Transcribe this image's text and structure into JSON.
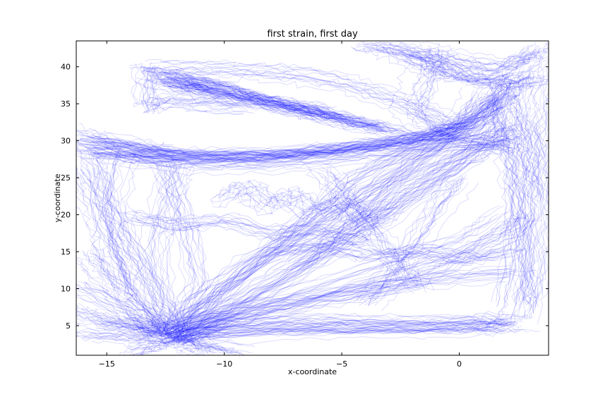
{
  "chart_data": {
    "type": "line",
    "title": "first strain, first day",
    "xlabel": "x-coordinate",
    "ylabel": "y-coordinate",
    "xlim": [
      -16.3,
      3.8
    ],
    "ylim": [
      1.0,
      43.5
    ],
    "x_ticks": [
      -15,
      -10,
      -5,
      0
    ],
    "x_tick_labels": [
      "−15",
      "−10",
      "−5",
      "0"
    ],
    "y_ticks": [
      5,
      10,
      15,
      20,
      25,
      30,
      35,
      40
    ],
    "y_tick_labels": [
      "5",
      "10",
      "15",
      "20",
      "25",
      "30",
      "35",
      "40"
    ],
    "grid": false,
    "legend": "none",
    "line_color": "#0000ff",
    "line_alpha": 0.15,
    "series": [
      {
        "x": [
          -12.5,
          -11.0,
          -8.0,
          -5.0,
          -2.0,
          0.5,
          2.0
        ],
        "y": [
          3.5,
          4.5,
          5.0,
          5.0,
          5.1,
          5.3,
          5.0
        ]
      },
      {
        "x": [
          -12.0,
          -10.0,
          -7.0,
          -4.0,
          -1.0,
          1.0,
          2.5
        ],
        "y": [
          4.0,
          5.2,
          5.5,
          5.4,
          5.2,
          5.5,
          5.2
        ]
      },
      {
        "x": [
          -12.3,
          -10.5,
          -6.0,
          -2.0,
          1.0,
          2.2
        ],
        "y": [
          3.0,
          4.0,
          4.6,
          4.8,
          5.0,
          6.0
        ]
      },
      {
        "x": [
          -15.0,
          -13.5,
          -12.5
        ],
        "y": [
          5.5,
          4.5,
          3.5
        ]
      },
      {
        "x": [
          -16.0,
          -14.5,
          -12.8
        ],
        "y": [
          4.0,
          3.8,
          3.5
        ]
      },
      {
        "x": [
          -16.0,
          -14.0,
          -12.5
        ],
        "y": [
          10.5,
          7.0,
          4.0
        ]
      },
      {
        "x": [
          -12.2,
          -11.5,
          -11.0
        ],
        "y": [
          3.5,
          2.0,
          1.2
        ]
      },
      {
        "x": [
          -12.0,
          -9.0,
          -6.0,
          -3.0,
          0.0,
          1.5,
          2.0
        ],
        "y": [
          4.0,
          9.0,
          14.0,
          20.0,
          27.0,
          32.0,
          35.0
        ]
      },
      {
        "x": [
          -12.5,
          -10.0,
          -7.0,
          -4.0,
          -1.0,
          1.0,
          2.0
        ],
        "y": [
          4.5,
          10.0,
          17.0,
          23.0,
          29.0,
          33.0,
          38.0
        ]
      },
      {
        "x": [
          -12.0,
          -8.0,
          -4.0,
          0.0,
          2.0
        ],
        "y": [
          3.5,
          8.0,
          12.0,
          16.0,
          20.0
        ]
      },
      {
        "x": [
          -12.3,
          -9.0,
          -5.0,
          -1.0,
          2.5
        ],
        "y": [
          4.0,
          7.0,
          9.0,
          11.0,
          12.0
        ]
      },
      {
        "x": [
          -12.5,
          -11.0,
          -9.0,
          -6.0,
          -3.0,
          0.0,
          2.0
        ],
        "y": [
          4.0,
          8.0,
          13.0,
          18.0,
          24.0,
          28.0,
          30.0
        ]
      },
      {
        "x": [
          -11.8,
          -9.5,
          -7.0,
          -4.5,
          -2.0,
          0.5
        ],
        "y": [
          4.2,
          11.0,
          18.0,
          25.0,
          29.0,
          31.0
        ]
      },
      {
        "x": [
          -12.5,
          -12.8,
          -13.0,
          -12.5,
          -12.0
        ],
        "y": [
          3.5,
          8.0,
          15.0,
          22.0,
          27.0
        ]
      },
      {
        "x": [
          -12.0,
          -13.0,
          -14.5,
          -15.5,
          -16.0
        ],
        "y": [
          4.0,
          10.0,
          18.0,
          25.0,
          29.0
        ]
      },
      {
        "x": [
          -12.5,
          -14.0,
          -14.8,
          -15.0,
          -14.5
        ],
        "y": [
          4.0,
          9.0,
          16.0,
          22.0,
          28.5
        ]
      },
      {
        "x": [
          -12.0,
          -11.0,
          -11.5,
          -12.5
        ],
        "y": [
          4.0,
          11.0,
          19.0,
          27.0
        ]
      },
      {
        "x": [
          -16.0,
          -14.0,
          -11.0,
          -8.0,
          -5.0,
          -3.0,
          -1.0,
          1.0
        ],
        "y": [
          29.5,
          28.5,
          28.0,
          28.2,
          29.0,
          30.0,
          31.0,
          33.0
        ]
      },
      {
        "x": [
          -16.0,
          -13.0,
          -10.0,
          -7.0,
          -4.0,
          -2.0,
          0.0,
          2.0
        ],
        "y": [
          30.0,
          28.5,
          27.8,
          28.0,
          28.8,
          30.0,
          32.0,
          36.0
        ]
      },
      {
        "x": [
          -15.5,
          -12.0,
          -9.0,
          -6.0,
          -3.5,
          -1.5,
          0.5,
          2.0
        ],
        "y": [
          29.0,
          28.2,
          28.0,
          28.5,
          29.5,
          30.5,
          32.5,
          37.0
        ]
      },
      {
        "x": [
          -16.0,
          -13.5,
          -11.0,
          -8.0,
          -5.0,
          -2.5,
          -0.5,
          1.5,
          2.5
        ],
        "y": [
          28.5,
          27.5,
          27.5,
          28.0,
          29.2,
          30.0,
          31.5,
          35.0,
          39.0
        ]
      },
      {
        "x": [
          -14.0,
          -11.0,
          -8.0,
          -5.0,
          -2.0,
          1.0,
          2.5
        ],
        "y": [
          28.0,
          27.0,
          27.0,
          28.0,
          29.0,
          30.0,
          31.0
        ]
      },
      {
        "x": [
          -16.0,
          -14.5,
          -13.0,
          -12.0
        ],
        "y": [
          31.0,
          30.0,
          29.0,
          28.5
        ]
      },
      {
        "x": [
          -12.5,
          -11.0,
          -9.0,
          -7.0,
          -5.0,
          -3.0
        ],
        "y": [
          38.5,
          37.5,
          36.0,
          34.5,
          33.0,
          31.5
        ]
      },
      {
        "x": [
          -13.0,
          -11.5,
          -10.0,
          -8.0,
          -6.0,
          -4.0,
          -2.0
        ],
        "y": [
          38.0,
          37.0,
          36.0,
          35.0,
          33.5,
          32.0,
          31.0
        ]
      },
      {
        "x": [
          -12.0,
          -10.5,
          -9.0,
          -7.5,
          -6.0,
          -4.5
        ],
        "y": [
          39.0,
          38.0,
          36.5,
          35.0,
          34.0,
          33.0
        ]
      },
      {
        "x": [
          -12.8,
          -11.0,
          -9.5,
          -8.0,
          -6.5,
          -5.0,
          -3.5
        ],
        "y": [
          37.5,
          36.5,
          35.5,
          34.5,
          33.5,
          32.5,
          31.5
        ]
      },
      {
        "x": [
          -11.5,
          -10.0,
          -8.5,
          -7.0,
          -5.5
        ],
        "y": [
          38.0,
          37.5,
          36.0,
          35.0,
          34.5
        ]
      },
      {
        "x": [
          -13.2,
          -12.0,
          -10.5
        ],
        "y": [
          39.5,
          38.5,
          37.0
        ]
      },
      {
        "x": [
          -13.0,
          -11.0,
          -9.0,
          -7.0,
          -5.0,
          -3.0,
          -1.5,
          0.0
        ],
        "y": [
          39.8,
          39.6,
          39.5,
          39.0,
          38.0,
          36.0,
          34.0,
          32.0
        ]
      },
      {
        "x": [
          -13.2,
          -13.2,
          -12.5,
          -11.0,
          -9.0
        ],
        "y": [
          40.0,
          34.5,
          35.5,
          35.0,
          34.5
        ]
      },
      {
        "x": [
          -3.0,
          -2.0,
          -1.0,
          0.0,
          1.5,
          2.5,
          3.5
        ],
        "y": [
          42.5,
          41.0,
          39.5,
          38.5,
          38.0,
          39.0,
          42.0
        ]
      },
      {
        "x": [
          -4.0,
          -2.5,
          -1.0,
          0.5,
          2.0,
          3.0,
          3.5
        ],
        "y": [
          43.0,
          42.5,
          41.5,
          40.5,
          40.0,
          41.0,
          42.5
        ]
      },
      {
        "x": [
          -2.0,
          -1.0,
          0.0,
          1.0,
          2.0,
          3.5
        ],
        "y": [
          42.0,
          40.5,
          39.0,
          38.0,
          37.5,
          38.0
        ]
      },
      {
        "x": [
          2.0,
          2.5,
          2.8,
          3.0,
          3.5
        ],
        "y": [
          38.0,
          34.0,
          30.0,
          26.0,
          22.0
        ]
      },
      {
        "x": [
          1.5,
          1.8,
          2.2,
          2.5,
          2.8,
          3.0
        ],
        "y": [
          36.0,
          31.0,
          26.0,
          20.0,
          14.0,
          8.0
        ]
      },
      {
        "x": [
          2.5,
          3.0,
          3.2,
          3.0,
          2.5
        ],
        "y": [
          33.0,
          27.0,
          20.0,
          12.0,
          6.0
        ]
      },
      {
        "x": [
          3.5,
          3.2,
          2.8,
          2.5,
          2.0
        ],
        "y": [
          40.0,
          33.0,
          25.0,
          16.0,
          8.0
        ]
      },
      {
        "x": [
          2.0,
          1.0,
          -1.0,
          -3.0,
          -5.0,
          -7.0
        ],
        "y": [
          32.0,
          29.0,
          25.0,
          21.0,
          17.0,
          13.0
        ]
      },
      {
        "x": [
          1.0,
          0.0,
          -2.0,
          -4.0,
          -6.0,
          -9.0,
          -12.0
        ],
        "y": [
          36.0,
          31.0,
          26.0,
          20.0,
          14.0,
          8.0,
          4.0
        ]
      },
      {
        "x": [
          3.0,
          2.0,
          0.0,
          -2.0,
          -5.0,
          -8.0,
          -11.0
        ],
        "y": [
          20.0,
          17.0,
          14.0,
          11.0,
          9.0,
          7.0,
          5.0
        ]
      },
      {
        "x": [
          -10.0,
          -9.0,
          -8.0,
          -7.0,
          -6.0,
          -5.0,
          -4.0,
          -3.0
        ],
        "y": [
          22.0,
          24.0,
          21.0,
          23.0,
          20.0,
          22.0,
          19.0,
          21.0
        ]
      },
      {
        "x": [
          -8.0,
          -6.0,
          -4.0,
          -2.0,
          0.0,
          2.0
        ],
        "y": [
          15.0,
          16.0,
          14.5,
          15.5,
          14.0,
          15.0
        ]
      },
      {
        "x": [
          -14.0,
          -12.0,
          -10.0,
          -8.0,
          -6.0,
          -4.0
        ],
        "y": [
          20.0,
          18.5,
          19.5,
          17.5,
          18.0,
          16.5
        ]
      },
      {
        "x": [
          -6.0,
          -5.0,
          -4.0,
          -3.0,
          -2.0
        ],
        "y": [
          26.0,
          22.0,
          18.0,
          14.0,
          10.0
        ]
      },
      {
        "x": [
          0.0,
          -1.0,
          -2.0,
          -3.0,
          -4.0
        ],
        "y": [
          25.0,
          21.0,
          16.0,
          12.0,
          8.0
        ]
      },
      {
        "x": [
          -1.0,
          -1.5,
          -2.0,
          -1.0,
          0.5,
          2.0
        ],
        "y": [
          42.0,
          38.0,
          34.0,
          31.0,
          30.0,
          29.0
        ]
      },
      {
        "x": [
          -16.0,
          -15.5,
          -15.0,
          -14.5,
          -14.0
        ],
        "y": [
          26.0,
          22.0,
          18.0,
          14.0,
          10.0
        ]
      },
      {
        "x": [
          -15.8,
          -15.0,
          -14.0,
          -13.0,
          -12.5
        ],
        "y": [
          15.0,
          12.0,
          9.0,
          6.0,
          4.0
        ]
      },
      {
        "x": [
          -16.2,
          -15.0,
          -13.5,
          -12.5
        ],
        "y": [
          7.0,
          5.5,
          4.5,
          3.5
        ]
      },
      {
        "x": [
          -14.0,
          -13.0,
          -12.0,
          -11.0,
          -10.0
        ],
        "y": [
          1.5,
          2.5,
          3.5,
          4.5,
          5.5
        ]
      },
      {
        "x": [
          -13.5,
          -12.5,
          -11.0,
          -9.5
        ],
        "y": [
          6.0,
          4.0,
          2.5,
          1.5
        ]
      }
    ]
  }
}
